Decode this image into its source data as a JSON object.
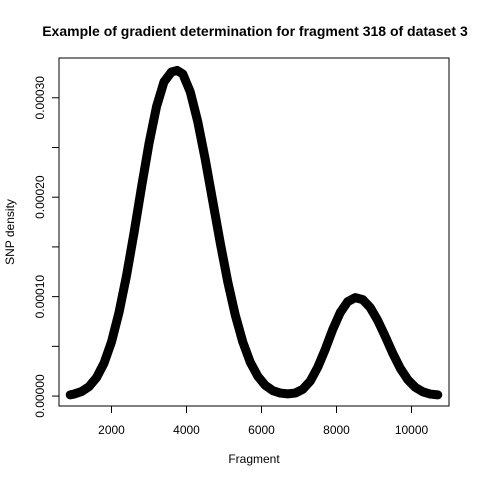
{
  "chart_data": {
    "type": "line",
    "title": "Example of gradient determination for fragment 318 of dataset 3",
    "xlabel": "Fragment",
    "ylabel": "SNP density",
    "xlim": [
      600,
      11000
    ],
    "ylim": [
      -1e-05,
      0.00034
    ],
    "x_ticks": [
      2000,
      4000,
      6000,
      8000,
      10000
    ],
    "x_tick_labels": [
      "2000",
      "4000",
      "6000",
      "8000",
      "10000"
    ],
    "y_ticks": [
      0,
      0.0001,
      0.0002,
      0.0003
    ],
    "y_tick_labels": [
      "0.00000",
      "0.00010",
      "0.00020",
      "0.00030"
    ],
    "grid": false,
    "series": [
      {
        "color": "#000000",
        "x": [
          900,
          1000,
          1200,
          1400,
          1600,
          1800,
          2000,
          2200,
          2400,
          2600,
          2800,
          3000,
          3200,
          3400,
          3600,
          3750,
          3900,
          4100,
          4300,
          4500,
          4700,
          4900,
          5100,
          5300,
          5500,
          5700,
          5900,
          6100,
          6300,
          6500,
          6700,
          6900,
          7100,
          7300,
          7500,
          7700,
          7900,
          8100,
          8300,
          8500,
          8700,
          8900,
          9100,
          9300,
          9500,
          9700,
          9900,
          10100,
          10300,
          10500,
          10700
        ],
        "values": [
          1.2e-06,
          2e-06,
          4.5e-06,
          9.5e-06,
          1.85e-05,
          3.3e-05,
          5.45e-05,
          8.4e-05,
          0.000121,
          0.000164,
          0.00021,
          0.000254,
          0.000291,
          0.000316,
          0.000326,
          0.0003275,
          0.000324,
          0.000306,
          0.000276,
          0.000238,
          0.000196,
          0.000154,
          0.000115,
          8.15e-05,
          5.45e-05,
          3.4e-05,
          2e-05,
          1.08e-05,
          5.5e-06,
          3e-06,
          2.2e-06,
          3e-06,
          6.8e-06,
          1.5e-05,
          2.9e-05,
          4.7e-05,
          6.7e-05,
          8.4e-05,
          9.5e-05,
          9.9e-05,
          9.7e-05,
          8.9e-05,
          7.6e-05,
          6e-05,
          4.3e-05,
          2.8e-05,
          1.65e-05,
          8.8e-06,
          4.3e-06,
          2e-06,
          1.2e-06
        ]
      }
    ]
  }
}
